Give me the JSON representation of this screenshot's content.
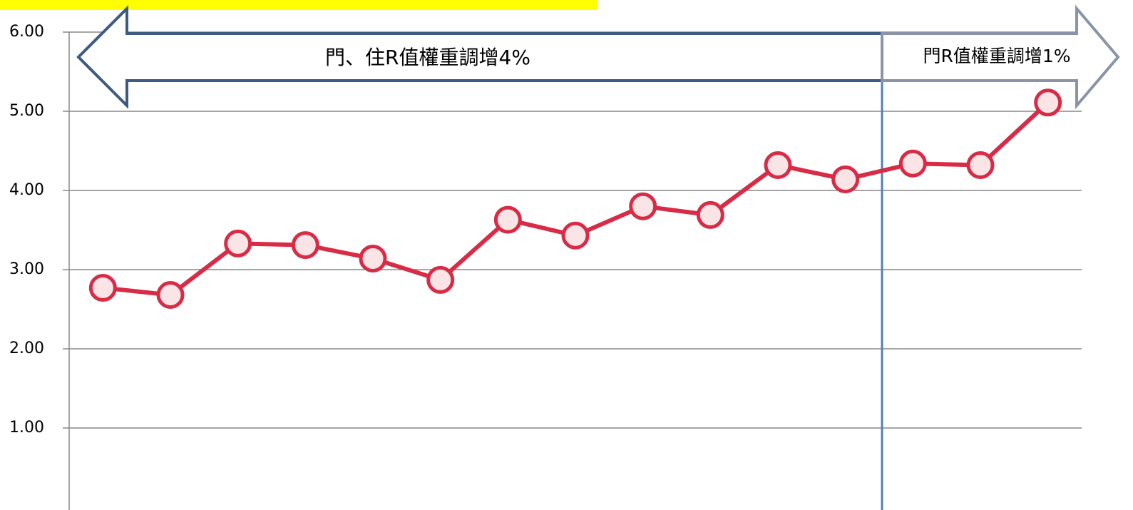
{
  "chart_data": {
    "type": "line",
    "categories": [
      null,
      null,
      null,
      null,
      null,
      null,
      null,
      null,
      null,
      null,
      null,
      null,
      null,
      null,
      null
    ],
    "series": [
      {
        "color": "#d92b45",
        "values": [
          2.77,
          2.68,
          3.33,
          3.31,
          3.14,
          2.87,
          3.63,
          3.43,
          3.8,
          3.69,
          4.32,
          4.14,
          4.34,
          4.32,
          5.11
        ]
      }
    ],
    "ylim": [
      0,
      6
    ],
    "yticks": [
      {
        "value": 1,
        "label": "1.00"
      },
      {
        "value": 2,
        "label": "2.00"
      },
      {
        "value": 3,
        "label": "3.00"
      },
      {
        "value": 4,
        "label": "4.00"
      },
      {
        "value": 5,
        "label": "5.00"
      },
      {
        "value": 6,
        "label": "6.00"
      }
    ],
    "grid": true,
    "annotations": [
      {
        "text": "門、住R值權重調增4%"
      },
      {
        "text": "門R值權重調增1%"
      }
    ]
  }
}
